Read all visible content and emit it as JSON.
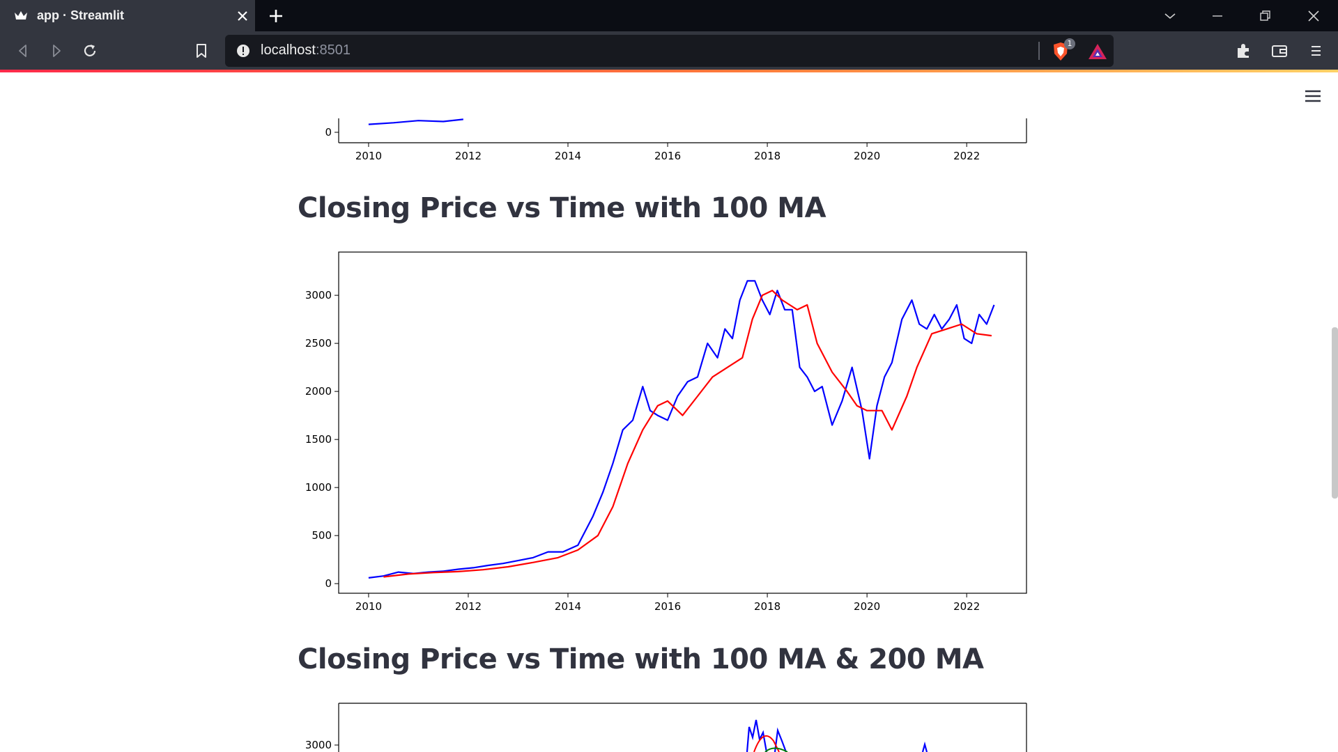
{
  "browser": {
    "tab_title": "app · Streamlit",
    "url_host": "localhost",
    "url_port": ":8501",
    "shield_count": "1"
  },
  "page": {
    "heading_ma100": "Closing Price vs Time with 100 MA",
    "heading_ma200": "Closing Price vs Time with 100 MA & 200 MA"
  },
  "chart_data": [
    {
      "type": "line",
      "title": "",
      "xlabel": "",
      "ylabel": "",
      "xlim": [
        2009.4,
        2023.2
      ],
      "x_ticks": [
        "2010",
        "2012",
        "2014",
        "2016",
        "2018",
        "2020",
        "2022"
      ],
      "y_ticks": [
        "0"
      ],
      "series": [
        {
          "color": "#0000ff",
          "x": [
            2010.0,
            2010.5,
            2011.0,
            2011.5,
            2011.9
          ],
          "y": [
            60,
            85,
            120,
            105,
            140
          ]
        }
      ],
      "note_visible": "partially scrolled out; only bottom visible"
    },
    {
      "type": "line",
      "title": "",
      "xlabel": "",
      "ylabel": "",
      "xlim": [
        2009.4,
        2023.2
      ],
      "ylim": [
        -100,
        3450
      ],
      "x_ticks": [
        "2010",
        "2012",
        "2014",
        "2016",
        "2018",
        "2020",
        "2022"
      ],
      "y_ticks": [
        "0",
        "500",
        "1000",
        "1500",
        "2000",
        "2500",
        "3000"
      ],
      "series": [
        {
          "color": "#0000ff",
          "x": [
            2010.0,
            2010.3,
            2010.6,
            2010.9,
            2011.2,
            2011.5,
            2011.8,
            2012.1,
            2012.4,
            2012.7,
            2013.0,
            2013.3,
            2013.6,
            2013.9,
            2014.2,
            2014.5,
            2014.7,
            2014.9,
            2015.1,
            2015.3,
            2015.5,
            2015.65,
            2015.8,
            2016.0,
            2016.2,
            2016.4,
            2016.6,
            2016.8,
            2017.0,
            2017.15,
            2017.3,
            2017.45,
            2017.6,
            2017.75,
            2017.9,
            2018.05,
            2018.2,
            2018.35,
            2018.5,
            2018.65,
            2018.8,
            2018.95,
            2019.1,
            2019.3,
            2019.5,
            2019.7,
            2019.9,
            2020.05,
            2020.2,
            2020.35,
            2020.5,
            2020.7,
            2020.9,
            2021.05,
            2021.2,
            2021.35,
            2021.5,
            2021.65,
            2021.8,
            2021.95,
            2022.1,
            2022.25,
            2022.4,
            2022.55
          ],
          "y": [
            60,
            80,
            120,
            105,
            120,
            130,
            150,
            165,
            190,
            210,
            240,
            270,
            330,
            330,
            400,
            700,
            950,
            1250,
            1600,
            1700,
            2050,
            1800,
            1750,
            1700,
            1950,
            2100,
            2150,
            2500,
            2350,
            2650,
            2550,
            2950,
            3150,
            3150,
            2950,
            2800,
            3050,
            2850,
            2850,
            2250,
            2150,
            2000,
            2050,
            1650,
            1900,
            2250,
            1800,
            1300,
            1850,
            2150,
            2300,
            2750,
            2950,
            2700,
            2650,
            2800,
            2650,
            2750,
            2900,
            2550,
            2500,
            2800,
            2700,
            2900
          ]
        },
        {
          "color": "#ff0000",
          "x": [
            2010.3,
            2010.8,
            2011.3,
            2011.8,
            2012.3,
            2012.8,
            2013.3,
            2013.8,
            2014.2,
            2014.6,
            2014.9,
            2015.2,
            2015.5,
            2015.8,
            2016.0,
            2016.3,
            2016.6,
            2016.9,
            2017.2,
            2017.5,
            2017.7,
            2017.9,
            2018.1,
            2018.3,
            2018.6,
            2018.8,
            2019.0,
            2019.3,
            2019.6,
            2019.8,
            2020.0,
            2020.3,
            2020.5,
            2020.8,
            2021.0,
            2021.3,
            2021.6,
            2021.9,
            2022.2,
            2022.5
          ],
          "y": [
            70,
            100,
            115,
            125,
            145,
            175,
            220,
            270,
            350,
            500,
            800,
            1250,
            1600,
            1850,
            1900,
            1750,
            1950,
            2150,
            2250,
            2350,
            2750,
            3000,
            3050,
            2950,
            2850,
            2900,
            2500,
            2200,
            2000,
            1850,
            1800,
            1800,
            1600,
            1950,
            2250,
            2600,
            2650,
            2700,
            2600,
            2580
          ]
        }
      ]
    },
    {
      "type": "line",
      "title": "",
      "xlabel": "",
      "ylabel": "",
      "y_ticks": [
        "3000"
      ],
      "series": [
        {
          "color": "#0000ff"
        },
        {
          "color": "#ff0000"
        },
        {
          "color": "#008000"
        }
      ],
      "note_visible": "partially scrolled out; only top visible"
    }
  ]
}
